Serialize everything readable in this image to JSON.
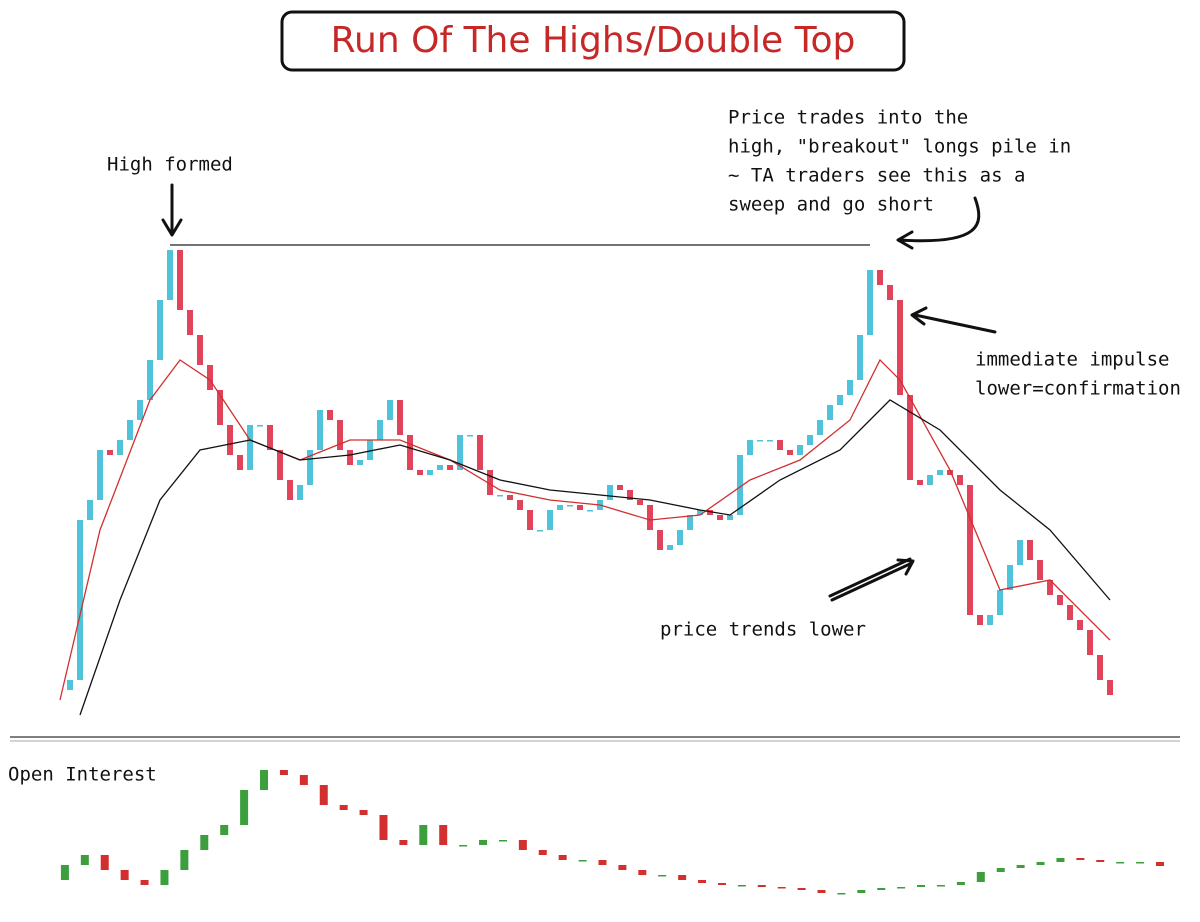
{
  "chart_data": [
    {
      "type": "candlestick",
      "title": "Run Of The Highs/Double Top",
      "annotations": [
        [
          "High formed"
        ],
        [
          "Price trades into the",
          "high, \"breakout\" longs pile in",
          "~ TA traders see this as a",
          "sweep and go short"
        ],
        [
          "immediate impulse",
          "lower=confirmation"
        ],
        [
          "price trends lower"
        ]
      ],
      "up_color": "#4ec3d9",
      "down_color": "#e0435a",
      "values": [
        25,
        35,
        195,
        215,
        265,
        260,
        275,
        295,
        315,
        355,
        415,
        465,
        405,
        380,
        350,
        325,
        290,
        260,
        245,
        290,
        290,
        265,
        235,
        215,
        230,
        265,
        305,
        295,
        265,
        250,
        255,
        275,
        295,
        315,
        280,
        245,
        240,
        245,
        250,
        245,
        280,
        280,
        245,
        220,
        220,
        215,
        205,
        185,
        185,
        205,
        210,
        210,
        205,
        205,
        215,
        230,
        225,
        215,
        210,
        185,
        165,
        170,
        185,
        200,
        205,
        200,
        195,
        200,
        260,
        275,
        275,
        275,
        265,
        260,
        270,
        280,
        295,
        310,
        320,
        335,
        380,
        445,
        430,
        415,
        320,
        235,
        230,
        240,
        245,
        240,
        230,
        100,
        90,
        100,
        125,
        150,
        175,
        155,
        135,
        120,
        110,
        95,
        85,
        60,
        35,
        20
      ],
      "ylim": [
        0,
        470
      ],
      "hline": {
        "value": 470,
        "from": 11,
        "to": 81
      },
      "overlays": [
        {
          "color": "#d32f2f",
          "x": [
            0,
            4,
            9,
            12,
            15,
            19,
            24,
            29,
            34,
            39,
            44,
            49,
            54,
            59,
            64,
            69,
            74,
            79,
            82,
            84,
            89,
            94,
            99,
            105
          ],
          "values": [
            15,
            185,
            315,
            355,
            335,
            275,
            255,
            275,
            275,
            255,
            225,
            215,
            210,
            195,
            200,
            235,
            255,
            295,
            355,
            335,
            245,
            125,
            135,
            75
          ]
        },
        {
          "color": "#111111",
          "x": [
            2,
            6,
            10,
            14,
            19,
            24,
            29,
            34,
            39,
            44,
            49,
            54,
            59,
            64,
            67,
            72,
            78,
            81,
            83,
            88,
            94,
            99,
            105
          ],
          "values": [
            0,
            115,
            215,
            265,
            275,
            255,
            260,
            270,
            255,
            235,
            225,
            220,
            215,
            205,
            200,
            235,
            265,
            295,
            315,
            285,
            225,
            185,
            115
          ]
        }
      ]
    },
    {
      "type": "candlestick",
      "title": "Open Interest",
      "up_color": "#3c9e3c",
      "down_color": "#d32f2f",
      "values": [
        20,
        35,
        45,
        30,
        20,
        15,
        30,
        50,
        65,
        75,
        110,
        130,
        125,
        115,
        95,
        90,
        85,
        60,
        55,
        75,
        55,
        55,
        60,
        60,
        50,
        45,
        40,
        40,
        35,
        30,
        25,
        25,
        20,
        17,
        15,
        15,
        13,
        12,
        10,
        7,
        7,
        10,
        12,
        13,
        15,
        15,
        18,
        28,
        32,
        35,
        38,
        42,
        40,
        38,
        38,
        38,
        34
      ],
      "ylim": [
        0,
        130
      ]
    }
  ]
}
